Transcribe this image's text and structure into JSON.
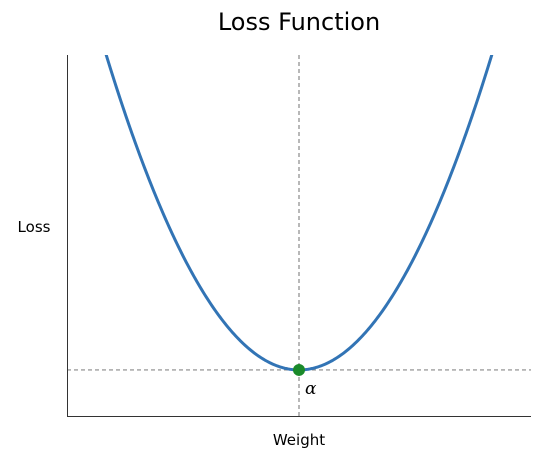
{
  "chart_data": {
    "type": "line",
    "title": "Loss Function",
    "xlabel": "Weight",
    "ylabel": "Loss",
    "xlim": [
      -3.55,
      3.55
    ],
    "ylim": [
      -0.65,
      4.35
    ],
    "grid": false,
    "ticks_shown": false,
    "series": [
      {
        "function": "y = 0.5 * x^2",
        "x": [
          -2.2,
          -2.0,
          -1.8,
          -1.6,
          -1.4,
          -1.2,
          -1.0,
          -0.8,
          -0.6,
          -0.4,
          -0.2,
          0.0,
          0.2,
          0.4,
          0.6,
          0.8,
          1.0,
          1.2,
          1.4,
          1.6,
          1.8,
          2.0,
          2.2
        ],
        "y": [
          2.42,
          2.0,
          1.62,
          1.28,
          0.98,
          0.72,
          0.5,
          0.32,
          0.18,
          0.08,
          0.02,
          0.0,
          0.02,
          0.08,
          0.18,
          0.32,
          0.5,
          0.72,
          0.98,
          1.28,
          1.62,
          2.0,
          2.42
        ],
        "color": "#3274b5"
      }
    ],
    "reference_lines": {
      "vertical_x": 0.0,
      "horizontal_y": 0.0,
      "style": "dashed",
      "color": "#888888"
    },
    "points": [
      {
        "x": 0.0,
        "y": 0.0,
        "color": "#1a8a2a",
        "label": "α"
      }
    ]
  }
}
